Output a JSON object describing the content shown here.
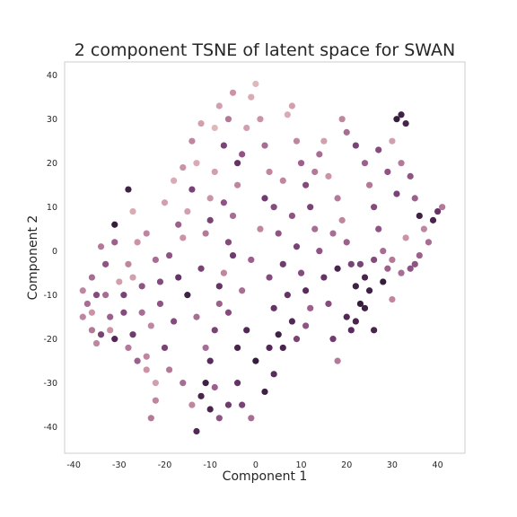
{
  "chart_data": {
    "type": "scatter",
    "title": "2 component TSNE of latent space for SWAN",
    "xlabel": "Component 1",
    "ylabel": "Component 2",
    "xlim": [
      -42,
      46
    ],
    "ylim": [
      -46,
      43
    ],
    "xticks": [
      -40,
      -30,
      -20,
      -10,
      0,
      10,
      20,
      30,
      40
    ],
    "yticks": [
      -40,
      -30,
      -20,
      -10,
      0,
      10,
      20,
      30,
      40
    ],
    "grid": false,
    "legend": "none",
    "colormap": [
      "#ecd0c8",
      "#cc93a6",
      "#8f5384",
      "#5b2b5f",
      "#2d1a33"
    ],
    "points": [
      {
        "x": -38,
        "y": -9,
        "c": 0.3
      },
      {
        "x": -37,
        "y": -12,
        "c": 0.4
      },
      {
        "x": -36,
        "y": -14,
        "c": 0.25
      },
      {
        "x": -36,
        "y": -18,
        "c": 0.35
      },
      {
        "x": -35,
        "y": -21,
        "c": 0.3
      },
      {
        "x": -34,
        "y": -19,
        "c": 0.6
      },
      {
        "x": -33,
        "y": -10,
        "c": 0.4
      },
      {
        "x": -32,
        "y": -15,
        "c": 0.45
      },
      {
        "x": -31,
        "y": -20,
        "c": 0.8
      },
      {
        "x": -30,
        "y": -7,
        "c": 0.2
      },
      {
        "x": -29,
        "y": -14,
        "c": 0.55
      },
      {
        "x": -28,
        "y": -3,
        "c": 0.3
      },
      {
        "x": -27,
        "y": -19,
        "c": 0.65
      },
      {
        "x": -26,
        "y": 2,
        "c": 0.25
      },
      {
        "x": -25,
        "y": -8,
        "c": 0.5
      },
      {
        "x": -24,
        "y": -24,
        "c": 0.3
      },
      {
        "x": -23,
        "y": -38,
        "c": 0.35
      },
      {
        "x": -22,
        "y": -30,
        "c": 0.2
      },
      {
        "x": -31,
        "y": 6,
        "c": 0.95
      },
      {
        "x": -28,
        "y": 14,
        "c": 0.9
      },
      {
        "x": -27,
        "y": 9,
        "c": 0.15
      },
      {
        "x": -24,
        "y": 4,
        "c": 0.3
      },
      {
        "x": -22,
        "y": -2,
        "c": 0.4
      },
      {
        "x": -21,
        "y": -12,
        "c": 0.5
      },
      {
        "x": -20,
        "y": -22,
        "c": 0.6
      },
      {
        "x": -19,
        "y": -27,
        "c": 0.35
      },
      {
        "x": -18,
        "y": -16,
        "c": 0.55
      },
      {
        "x": -17,
        "y": -6,
        "c": 0.7
      },
      {
        "x": -16,
        "y": 3,
        "c": 0.25
      },
      {
        "x": -15,
        "y": 9,
        "c": 0.2
      },
      {
        "x": -14,
        "y": 14,
        "c": 0.6
      },
      {
        "x": -13,
        "y": 20,
        "c": 0.15
      },
      {
        "x": -12,
        "y": -33,
        "c": 0.85
      },
      {
        "x": -11,
        "y": -30,
        "c": 0.9
      },
      {
        "x": -13,
        "y": -41,
        "c": 0.8
      },
      {
        "x": -10,
        "y": -25,
        "c": 0.75
      },
      {
        "x": -9,
        "y": -18,
        "c": 0.6
      },
      {
        "x": -8,
        "y": -12,
        "c": 0.45
      },
      {
        "x": -7,
        "y": -5,
        "c": 0.3
      },
      {
        "x": -6,
        "y": 2,
        "c": 0.55
      },
      {
        "x": -5,
        "y": 8,
        "c": 0.4
      },
      {
        "x": -4,
        "y": 15,
        "c": 0.3
      },
      {
        "x": -3,
        "y": 22,
        "c": 0.5
      },
      {
        "x": -2,
        "y": 28,
        "c": 0.2
      },
      {
        "x": -1,
        "y": 35,
        "c": 0.15
      },
      {
        "x": 0,
        "y": 38,
        "c": 0.1
      },
      {
        "x": 1,
        "y": 30,
        "c": 0.25
      },
      {
        "x": 2,
        "y": 24,
        "c": 0.4
      },
      {
        "x": 3,
        "y": 18,
        "c": 0.3
      },
      {
        "x": 4,
        "y": 10,
        "c": 0.55
      },
      {
        "x": 5,
        "y": 4,
        "c": 0.5
      },
      {
        "x": 6,
        "y": -3,
        "c": 0.65
      },
      {
        "x": 7,
        "y": -10,
        "c": 0.7
      },
      {
        "x": 8,
        "y": -16,
        "c": 0.8
      },
      {
        "x": 6,
        "y": -22,
        "c": 0.85
      },
      {
        "x": 4,
        "y": -28,
        "c": 0.75
      },
      {
        "x": 2,
        "y": -32,
        "c": 0.9
      },
      {
        "x": 0,
        "y": -25,
        "c": 0.95
      },
      {
        "x": -2,
        "y": -18,
        "c": 0.8
      },
      {
        "x": -4,
        "y": -30,
        "c": 0.7
      },
      {
        "x": -6,
        "y": -35,
        "c": 0.65
      },
      {
        "x": -8,
        "y": -38,
        "c": 0.5
      },
      {
        "x": -10,
        "y": -36,
        "c": 0.85
      },
      {
        "x": -11,
        "y": -22,
        "c": 0.4
      },
      {
        "x": -9,
        "y": 28,
        "c": 0.1
      },
      {
        "x": -8,
        "y": 33,
        "c": 0.2
      },
      {
        "x": -7,
        "y": 24,
        "c": 0.6
      },
      {
        "x": -6,
        "y": 30,
        "c": 0.35
      },
      {
        "x": -5,
        "y": 36,
        "c": 0.25
      },
      {
        "x": -4,
        "y": 20,
        "c": 0.7
      },
      {
        "x": 8,
        "y": 33,
        "c": 0.2
      },
      {
        "x": 7,
        "y": 31,
        "c": 0.15
      },
      {
        "x": 9,
        "y": 25,
        "c": 0.3
      },
      {
        "x": 10,
        "y": 20,
        "c": 0.45
      },
      {
        "x": 11,
        "y": 15,
        "c": 0.55
      },
      {
        "x": 12,
        "y": 10,
        "c": 0.6
      },
      {
        "x": 13,
        "y": 5,
        "c": 0.4
      },
      {
        "x": 14,
        "y": 0,
        "c": 0.5
      },
      {
        "x": 15,
        "y": -6,
        "c": 0.7
      },
      {
        "x": 16,
        "y": -12,
        "c": 0.55
      },
      {
        "x": 17,
        "y": -20,
        "c": 0.65
      },
      {
        "x": 18,
        "y": -25,
        "c": 0.35
      },
      {
        "x": 14,
        "y": 22,
        "c": 0.4
      },
      {
        "x": 16,
        "y": 17,
        "c": 0.25
      },
      {
        "x": 18,
        "y": 12,
        "c": 0.35
      },
      {
        "x": 19,
        "y": 7,
        "c": 0.3
      },
      {
        "x": 20,
        "y": 2,
        "c": 0.45
      },
      {
        "x": 21,
        "y": -3,
        "c": 0.6
      },
      {
        "x": 22,
        "y": -8,
        "c": 0.9
      },
      {
        "x": 23,
        "y": -12,
        "c": 0.95
      },
      {
        "x": 24,
        "y": -6,
        "c": 0.85
      },
      {
        "x": 25,
        "y": -9,
        "c": 0.9
      },
      {
        "x": 22,
        "y": -16,
        "c": 0.85
      },
      {
        "x": 20,
        "y": -15,
        "c": 0.8
      },
      {
        "x": 21,
        "y": -18,
        "c": 0.75
      },
      {
        "x": 19,
        "y": 30,
        "c": 0.3
      },
      {
        "x": 20,
        "y": 27,
        "c": 0.4
      },
      {
        "x": 22,
        "y": 24,
        "c": 0.6
      },
      {
        "x": 24,
        "y": 20,
        "c": 0.45
      },
      {
        "x": 25,
        "y": 15,
        "c": 0.35
      },
      {
        "x": 26,
        "y": 10,
        "c": 0.55
      },
      {
        "x": 27,
        "y": 5,
        "c": 0.5
      },
      {
        "x": 28,
        "y": 0,
        "c": 0.4
      },
      {
        "x": 29,
        "y": -4,
        "c": 0.45
      },
      {
        "x": 30,
        "y": -2,
        "c": 0.35
      },
      {
        "x": 31,
        "y": 30,
        "c": 0.95
      },
      {
        "x": 32,
        "y": 31,
        "c": 0.9
      },
      {
        "x": 33,
        "y": 29,
        "c": 0.85
      },
      {
        "x": 30,
        "y": 25,
        "c": 0.2
      },
      {
        "x": 32,
        "y": 20,
        "c": 0.35
      },
      {
        "x": 34,
        "y": 17,
        "c": 0.5
      },
      {
        "x": 35,
        "y": 12,
        "c": 0.45
      },
      {
        "x": 36,
        "y": 8,
        "c": 0.9
      },
      {
        "x": 37,
        "y": 5,
        "c": 0.3
      },
      {
        "x": 38,
        "y": 2,
        "c": 0.4
      },
      {
        "x": 39,
        "y": 7,
        "c": 0.85
      },
      {
        "x": 40,
        "y": 9,
        "c": 0.7
      },
      {
        "x": 41,
        "y": 10,
        "c": 0.35
      },
      {
        "x": 36,
        "y": -1,
        "c": 0.45
      },
      {
        "x": 34,
        "y": -4,
        "c": 0.5
      },
      {
        "x": 33,
        "y": 3,
        "c": 0.25
      },
      {
        "x": 31,
        "y": 13,
        "c": 0.6
      },
      {
        "x": 29,
        "y": 18,
        "c": 0.5
      },
      {
        "x": 27,
        "y": 23,
        "c": 0.55
      },
      {
        "x": -33,
        "y": -3,
        "c": 0.5
      },
      {
        "x": -34,
        "y": 1,
        "c": 0.35
      },
      {
        "x": -31,
        "y": 2,
        "c": 0.45
      },
      {
        "x": -29,
        "y": -10,
        "c": 0.6
      },
      {
        "x": -27,
        "y": -6,
        "c": 0.2
      },
      {
        "x": -25,
        "y": -14,
        "c": 0.4
      },
      {
        "x": -23,
        "y": -17,
        "c": 0.3
      },
      {
        "x": -21,
        "y": -7,
        "c": 0.55
      },
      {
        "x": -19,
        "y": -1,
        "c": 0.5
      },
      {
        "x": -17,
        "y": 6,
        "c": 0.45
      },
      {
        "x": -15,
        "y": -10,
        "c": 0.9
      },
      {
        "x": -13,
        "y": -15,
        "c": 0.4
      },
      {
        "x": -12,
        "y": -4,
        "c": 0.6
      },
      {
        "x": -11,
        "y": 4,
        "c": 0.35
      },
      {
        "x": -10,
        "y": 12,
        "c": 0.25
      },
      {
        "x": -9,
        "y": 18,
        "c": 0.2
      },
      {
        "x": -8,
        "y": -8,
        "c": 0.7
      },
      {
        "x": -6,
        "y": -14,
        "c": 0.55
      },
      {
        "x": -4,
        "y": -22,
        "c": 0.85
      },
      {
        "x": -3,
        "y": -9,
        "c": 0.4
      },
      {
        "x": -1,
        "y": -2,
        "c": 0.45
      },
      {
        "x": 1,
        "y": 5,
        "c": 0.3
      },
      {
        "x": 2,
        "y": 12,
        "c": 0.65
      },
      {
        "x": 3,
        "y": -6,
        "c": 0.55
      },
      {
        "x": 4,
        "y": -13,
        "c": 0.7
      },
      {
        "x": 5,
        "y": -19,
        "c": 0.9
      },
      {
        "x": 6,
        "y": 16,
        "c": 0.3
      },
      {
        "x": 8,
        "y": 8,
        "c": 0.5
      },
      {
        "x": 9,
        "y": 1,
        "c": 0.6
      },
      {
        "x": 10,
        "y": -5,
        "c": 0.55
      },
      {
        "x": 11,
        "y": -9,
        "c": 0.75
      },
      {
        "x": 12,
        "y": -13,
        "c": 0.45
      },
      {
        "x": 13,
        "y": 18,
        "c": 0.35
      },
      {
        "x": 15,
        "y": 25,
        "c": 0.2
      },
      {
        "x": 17,
        "y": 4,
        "c": 0.4
      },
      {
        "x": 18,
        "y": -4,
        "c": 0.85
      },
      {
        "x": -20,
        "y": 11,
        "c": 0.2
      },
      {
        "x": -18,
        "y": 16,
        "c": 0.15
      },
      {
        "x": -16,
        "y": 19,
        "c": 0.25
      },
      {
        "x": -14,
        "y": 25,
        "c": 0.3
      },
      {
        "x": -12,
        "y": 29,
        "c": 0.2
      },
      {
        "x": -10,
        "y": 7,
        "c": 0.6
      },
      {
        "x": -7,
        "y": 11,
        "c": 0.5
      },
      {
        "x": -5,
        "y": -1,
        "c": 0.65
      },
      {
        "x": -22,
        "y": -34,
        "c": 0.3
      },
      {
        "x": -24,
        "y": -27,
        "c": 0.25
      },
      {
        "x": -26,
        "y": -25,
        "c": 0.45
      },
      {
        "x": -28,
        "y": -22,
        "c": 0.35
      },
      {
        "x": -16,
        "y": -30,
        "c": 0.4
      },
      {
        "x": -14,
        "y": -35,
        "c": 0.3
      },
      {
        "x": -9,
        "y": -31,
        "c": 0.45
      },
      {
        "x": -3,
        "y": -35,
        "c": 0.6
      },
      {
        "x": -1,
        "y": -38,
        "c": 0.4
      },
      {
        "x": 3,
        "y": -22,
        "c": 0.8
      },
      {
        "x": 9,
        "y": -20,
        "c": 0.6
      },
      {
        "x": 11,
        "y": -17,
        "c": 0.5
      },
      {
        "x": -36,
        "y": -6,
        "c": 0.4
      },
      {
        "x": -38,
        "y": -15,
        "c": 0.3
      },
      {
        "x": -35,
        "y": -10,
        "c": 0.55
      },
      {
        "x": -32,
        "y": -18,
        "c": 0.25
      },
      {
        "x": 26,
        "y": -18,
        "c": 0.85
      },
      {
        "x": 24,
        "y": -13,
        "c": 0.9
      },
      {
        "x": 23,
        "y": -3,
        "c": 0.6
      },
      {
        "x": 26,
        "y": -2,
        "c": 0.55
      },
      {
        "x": 28,
        "y": -7,
        "c": 0.95
      },
      {
        "x": 30,
        "y": -11,
        "c": 0.3
      },
      {
        "x": 32,
        "y": -5,
        "c": 0.4
      },
      {
        "x": 35,
        "y": -3,
        "c": 0.5
      }
    ]
  }
}
